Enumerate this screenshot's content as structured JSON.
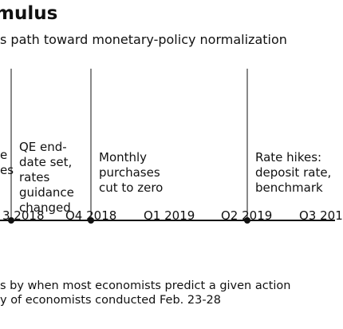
{
  "header": {
    "title": "mulus",
    "subtitle": "s path toward monetary-policy normalization"
  },
  "timeline": {
    "events": [
      {
        "label": "e\nes"
      },
      {
        "label": "QE end-\ndate set,\nrates\nguidance\nchanged"
      },
      {
        "label": "Monthly\npurchases\ncut to zero"
      },
      {
        "label": "Rate hikes:\ndeposit rate,\nbenchmark"
      }
    ],
    "quarters": [
      "3 2018",
      "Q4 2018",
      "Q1 2019",
      "Q2 2019",
      "Q3 201"
    ]
  },
  "footnotes": [
    "s by when most economists predict a given action",
    "y of economists conducted Feb. 23-28"
  ]
}
